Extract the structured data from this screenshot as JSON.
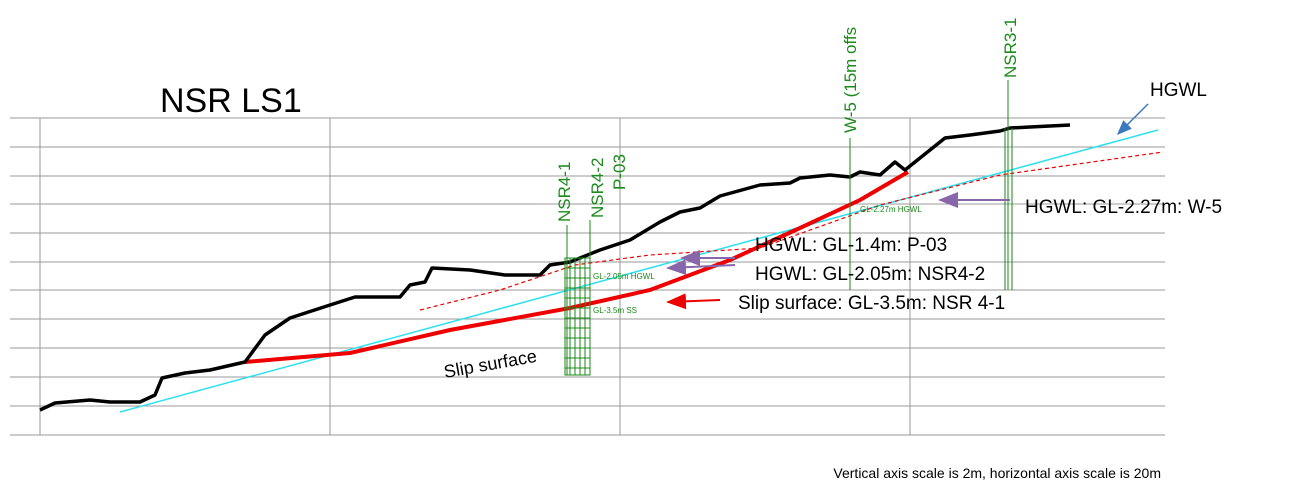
{
  "title": "NSR LS1",
  "hgwl_label": "HGWL",
  "boreholes": [
    "W-5 (15m offs",
    "NSR3-1",
    "NSR4-1",
    "NSR4-2",
    "P-03"
  ],
  "annotations": [
    "HGWL: GL-2.27m: W-5",
    "HGWL: GL-1.4m: P-03",
    "HGWL: GL-2.05m: NSR4-2",
    "Slip surface: GL-3.5m: NSR 4-1"
  ],
  "slip_label": "Slip surface",
  "small_labels": [
    "GL-2.27m HGWL",
    "GL-2.05m HGWL",
    "GL-3.5m SS"
  ],
  "note": "Vertical axis scale is 2m, horizontal axis scale is 20m"
}
